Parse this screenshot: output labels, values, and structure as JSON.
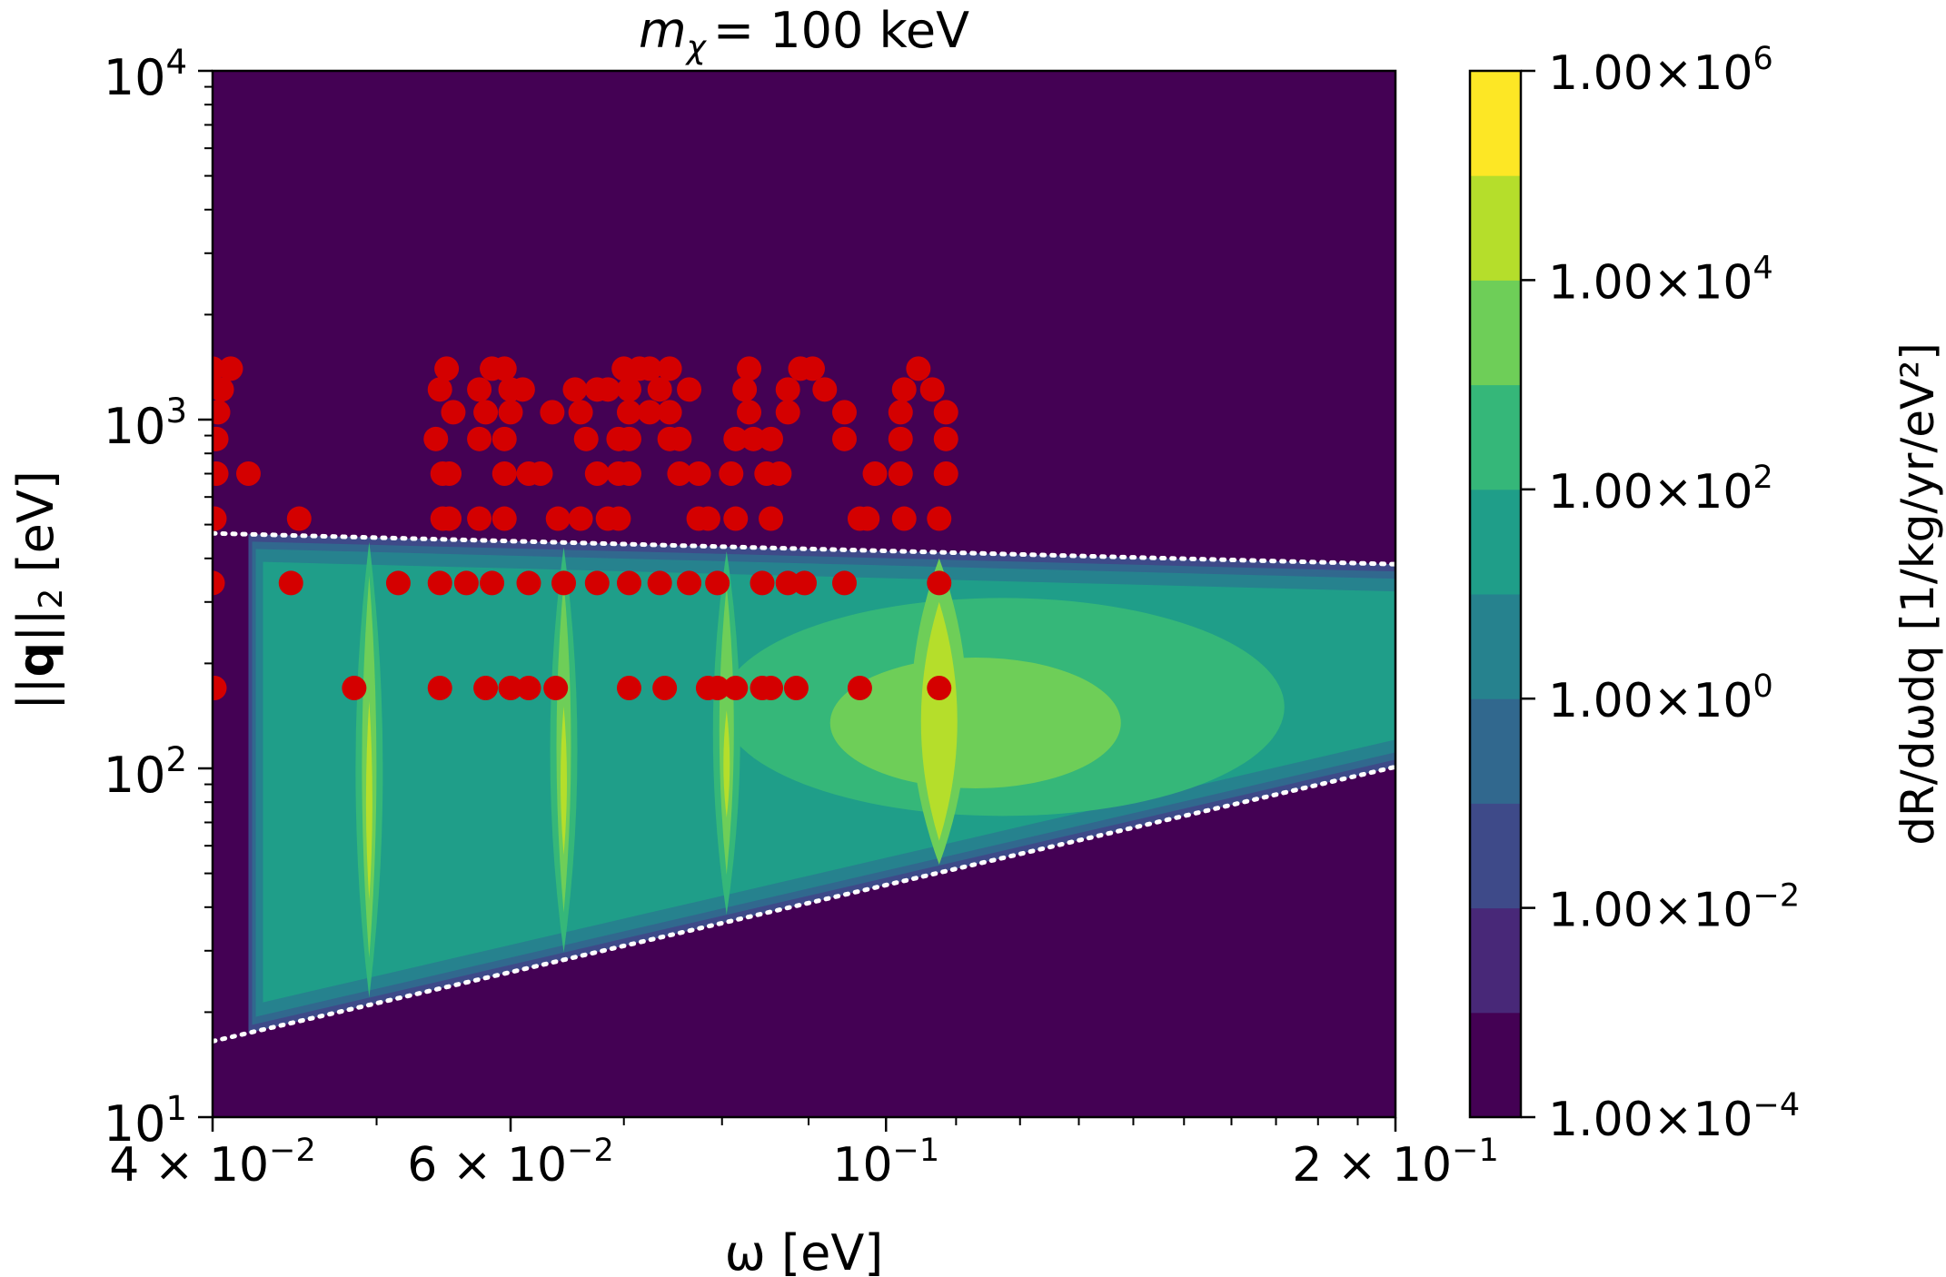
{
  "chart_data": {
    "type": "heatmap",
    "title_var": "m",
    "title_sub": "χ",
    "title_eq": "= 100 keV",
    "xlabel": "ω [eV]",
    "ylabel_pre": "||",
    "ylabel_bold": "q",
    "ylabel_post": "||",
    "ylabel_sub": "2",
    "ylabel_unit": " [eV]",
    "xscale": "log",
    "yscale": "log",
    "xlim": [
      0.04,
      0.2
    ],
    "ylim": [
      10,
      10000
    ],
    "x_ticks": [
      {
        "value": 0.04,
        "mant": "4 × 10",
        "exp": "−2"
      },
      {
        "value": 0.06,
        "mant": "6 × 10",
        "exp": "−2"
      },
      {
        "value": 0.1,
        "mant": "10",
        "exp": "−1"
      },
      {
        "value": 0.2,
        "mant": "2 × 10",
        "exp": "−1"
      }
    ],
    "y_ticks": [
      {
        "value": 10,
        "mant": "10",
        "exp": "1"
      },
      {
        "value": 100,
        "mant": "10",
        "exp": "2"
      },
      {
        "value": 1000,
        "mant": "10",
        "exp": "3"
      },
      {
        "value": 10000,
        "mant": "10",
        "exp": "4"
      }
    ],
    "colorbar": {
      "label": "dR/dωdq [1/kg/yr/eV²]",
      "scale": "log",
      "range": [
        0.0001,
        1000000
      ],
      "levels": [
        0.0001,
        0.001,
        0.01,
        0.1,
        1,
        10,
        100,
        1000,
        10000,
        100000,
        1000000
      ],
      "colors": [
        "#440154",
        "#482878",
        "#3e4a89",
        "#31688e",
        "#26828e",
        "#1f9e89",
        "#35b779",
        "#6ece58",
        "#b5de2b",
        "#fde725"
      ],
      "ticks": [
        {
          "value": 0.0001,
          "mant": "1.00×10",
          "exp": "−4"
        },
        {
          "value": 0.01,
          "mant": "1.00×10",
          "exp": "−2"
        },
        {
          "value": 1,
          "mant": "1.00×10",
          "exp": "0"
        },
        {
          "value": 100,
          "mant": "1.00×10",
          "exp": "2"
        },
        {
          "value": 10000,
          "mant": "1.00×10",
          "exp": "4"
        },
        {
          "value": 1000000,
          "mant": "1.00×10",
          "exp": "6"
        }
      ]
    },
    "boundaries": {
      "upper": [
        [
          0.04,
          472
        ],
        [
          0.2,
          385
        ]
      ],
      "lower": [
        [
          0.04,
          16.5
        ],
        [
          0.2,
          101
        ]
      ],
      "style": "white dotted"
    },
    "peaks": [
      0.0495,
      0.0645,
      0.0805,
      0.1075
    ],
    "points_color": "#d40000",
    "points": [
      [
        0.04,
        1400
      ],
      [
        0.041,
        1400
      ],
      [
        0.0405,
        1220
      ],
      [
        0.0403,
        1050
      ],
      [
        0.0402,
        880
      ],
      [
        0.0402,
        700
      ],
      [
        0.042,
        700
      ],
      [
        0.0401,
        520
      ],
      [
        0.045,
        520
      ],
      [
        0.055,
        1400
      ],
      [
        0.0545,
        1220
      ],
      [
        0.0555,
        1050
      ],
      [
        0.0542,
        880
      ],
      [
        0.0547,
        700
      ],
      [
        0.0552,
        700
      ],
      [
        0.0547,
        520
      ],
      [
        0.0552,
        520
      ],
      [
        0.0585,
        1400
      ],
      [
        0.0595,
        1400
      ],
      [
        0.0575,
        1220
      ],
      [
        0.06,
        1220
      ],
      [
        0.061,
        1220
      ],
      [
        0.058,
        1050
      ],
      [
        0.06,
        1050
      ],
      [
        0.0575,
        880
      ],
      [
        0.0595,
        880
      ],
      [
        0.0595,
        700
      ],
      [
        0.0575,
        520
      ],
      [
        0.0595,
        520
      ],
      [
        0.0635,
        1050
      ],
      [
        0.0615,
        700
      ],
      [
        0.0625,
        700
      ],
      [
        0.064,
        520
      ],
      [
        0.066,
        520
      ],
      [
        0.0655,
        1220
      ],
      [
        0.0675,
        1220
      ],
      [
        0.0685,
        1220
      ],
      [
        0.066,
        1050
      ],
      [
        0.0665,
        880
      ],
      [
        0.0695,
        880
      ],
      [
        0.0675,
        700
      ],
      [
        0.0695,
        700
      ],
      [
        0.0685,
        520
      ],
      [
        0.0695,
        520
      ],
      [
        0.07,
        1400
      ],
      [
        0.0715,
        1400
      ],
      [
        0.0725,
        1400
      ],
      [
        0.0745,
        1400
      ],
      [
        0.0705,
        1220
      ],
      [
        0.0735,
        1220
      ],
      [
        0.0765,
        1220
      ],
      [
        0.0705,
        1050
      ],
      [
        0.0725,
        1050
      ],
      [
        0.0745,
        1050
      ],
      [
        0.0705,
        880
      ],
      [
        0.0745,
        880
      ],
      [
        0.0755,
        880
      ],
      [
        0.0705,
        700
      ],
      [
        0.0755,
        700
      ],
      [
        0.0775,
        700
      ],
      [
        0.0775,
        520
      ],
      [
        0.0785,
        520
      ],
      [
        0.083,
        1400
      ],
      [
        0.0825,
        1220
      ],
      [
        0.083,
        1050
      ],
      [
        0.0815,
        880
      ],
      [
        0.0835,
        880
      ],
      [
        0.081,
        700
      ],
      [
        0.085,
        700
      ],
      [
        0.0815,
        520
      ],
      [
        0.0855,
        520
      ],
      [
        0.089,
        1400
      ],
      [
        0.0905,
        1400
      ],
      [
        0.0875,
        1220
      ],
      [
        0.092,
        1220
      ],
      [
        0.0875,
        1050
      ],
      [
        0.0945,
        1050
      ],
      [
        0.0855,
        880
      ],
      [
        0.0945,
        880
      ],
      [
        0.0865,
        700
      ],
      [
        0.0985,
        700
      ],
      [
        0.0965,
        520
      ],
      [
        0.0975,
        520
      ],
      [
        0.1045,
        1400
      ],
      [
        0.1025,
        1220
      ],
      [
        0.1065,
        1220
      ],
      [
        0.102,
        1050
      ],
      [
        0.1085,
        1050
      ],
      [
        0.102,
        880
      ],
      [
        0.1085,
        880
      ],
      [
        0.102,
        700
      ],
      [
        0.1085,
        700
      ],
      [
        0.1025,
        520
      ],
      [
        0.1075,
        520
      ],
      [
        0.04,
        340
      ],
      [
        0.0445,
        340
      ],
      [
        0.0515,
        340
      ],
      [
        0.0545,
        340
      ],
      [
        0.0565,
        340
      ],
      [
        0.0585,
        340
      ],
      [
        0.0615,
        340
      ],
      [
        0.0645,
        340
      ],
      [
        0.0675,
        340
      ],
      [
        0.0705,
        340
      ],
      [
        0.0735,
        340
      ],
      [
        0.0765,
        340
      ],
      [
        0.0795,
        340
      ],
      [
        0.0845,
        340
      ],
      [
        0.0875,
        340
      ],
      [
        0.0895,
        340
      ],
      [
        0.0945,
        340
      ],
      [
        0.1075,
        340
      ],
      [
        0.0401,
        170
      ],
      [
        0.0485,
        170
      ],
      [
        0.0545,
        170
      ],
      [
        0.058,
        170
      ],
      [
        0.06,
        170
      ],
      [
        0.0615,
        170
      ],
      [
        0.0638,
        170
      ],
      [
        0.0705,
        170
      ],
      [
        0.074,
        170
      ],
      [
        0.0785,
        170
      ],
      [
        0.0795,
        170
      ],
      [
        0.0815,
        170
      ],
      [
        0.0845,
        170
      ],
      [
        0.0855,
        170
      ],
      [
        0.0885,
        170
      ],
      [
        0.0965,
        170
      ],
      [
        0.1075,
        170
      ]
    ]
  }
}
